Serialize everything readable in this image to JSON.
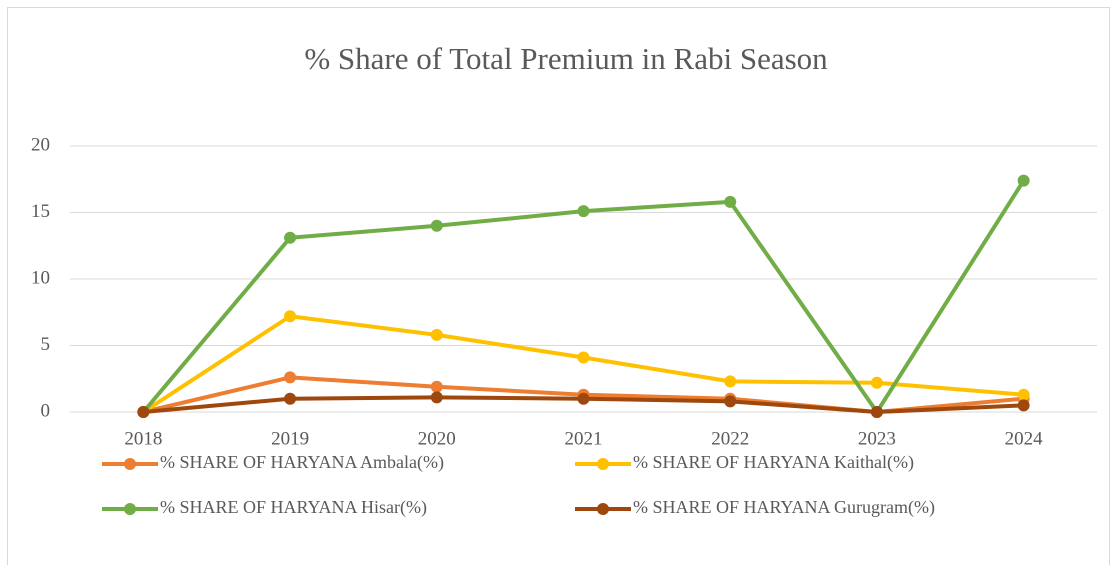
{
  "chart_data": {
    "type": "line",
    "title": "% Share of Total Premium in Rabi  Season",
    "categories": [
      "2018",
      "2019",
      "2020",
      "2021",
      "2022",
      "2023",
      "2024"
    ],
    "series": [
      {
        "name": "% SHARE OF HARYANA Ambala(%)",
        "color": "#ED7D31",
        "values": [
          0,
          2.6,
          1.9,
          1.3,
          1.0,
          0,
          1.0
        ]
      },
      {
        "name": "% SHARE OF HARYANA Kaithal(%)",
        "color": "#FFC000",
        "values": [
          0,
          7.2,
          5.8,
          4.1,
          2.3,
          2.2,
          1.3
        ]
      },
      {
        "name": "% SHARE OF HARYANA Hisar(%)",
        "color": "#70AD47",
        "values": [
          0,
          13.1,
          14.0,
          15.1,
          15.8,
          0,
          17.4
        ]
      },
      {
        "name": "% SHARE OF HARYANA Gurugram(%)",
        "color": "#9E480E",
        "values": [
          0,
          1.0,
          1.1,
          1.0,
          0.8,
          0,
          0.5
        ]
      }
    ],
    "ylim": [
      0,
      20
    ],
    "yticks": [
      0,
      5,
      10,
      15,
      20
    ],
    "grid": true,
    "legend": "bottom"
  }
}
